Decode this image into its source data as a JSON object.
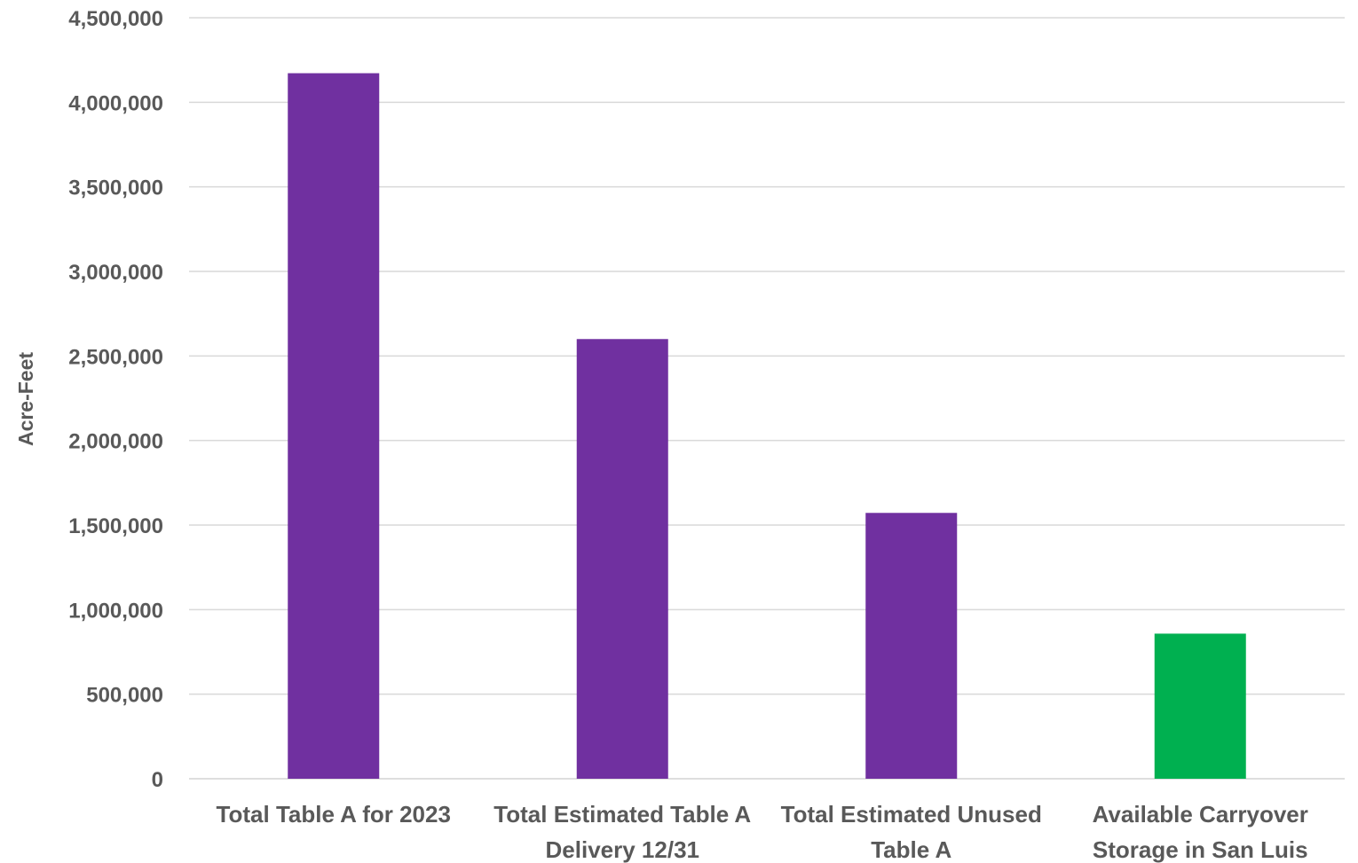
{
  "chart_data": {
    "type": "bar",
    "title": "",
    "xlabel": "",
    "ylabel": "Acre-Feet",
    "ylim": [
      0,
      4500000
    ],
    "yticks": [
      0,
      500000,
      1000000,
      1500000,
      2000000,
      2500000,
      3000000,
      3500000,
      4000000,
      4500000
    ],
    "ytick_labels": [
      "0",
      "500,000",
      "1,000,000",
      "1,500,000",
      "2,000,000",
      "2,500,000",
      "3,000,000",
      "3,500,000",
      "4,000,000",
      "4,500,000"
    ],
    "grid": true,
    "legend": "none",
    "categories": [
      [
        "Total Table A for 2023"
      ],
      [
        "Total Estimated Table A",
        "Delivery 12/31"
      ],
      [
        "Total Estimated Unused",
        "Table A"
      ],
      [
        "Available Carryover",
        "Storage in San Luis"
      ]
    ],
    "values": [
      4172000,
      2600000,
      1572000,
      858000
    ],
    "bar_colors": [
      "#7030a0",
      "#7030a0",
      "#7030a0",
      "#00b050"
    ]
  }
}
